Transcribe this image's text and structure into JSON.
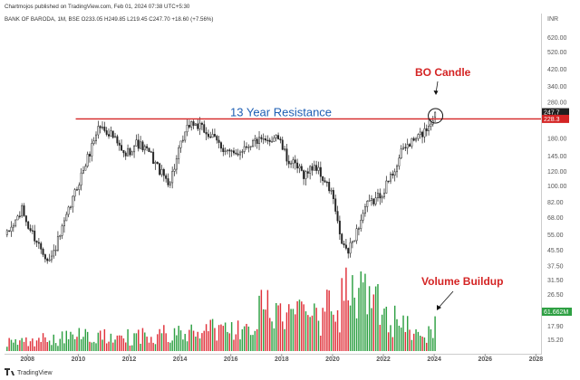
{
  "header": {
    "published_line": "Chartmojos published on TradingView.com, Feb 01, 2024 07:38 UTC+5:30",
    "symbol_line": "BANK OF BARODA, 1M, BSE  O233.05  H249.85  L219.45  C247.70  +18.60 (+7.56%)",
    "currency": "INR"
  },
  "footer": {
    "brand": "TradingView"
  },
  "colors": {
    "up": "#2ea043",
    "down": "#e0313a",
    "resistance": "#d42424",
    "annotation_blue": "#1e5fb4",
    "volume_badge": "#2ea043"
  },
  "chart_data": {
    "type": "candlestick",
    "title": "BANK OF BARODA, 1M, BSE",
    "xlabel": "",
    "ylabel": "",
    "y_scale": "log",
    "x_ticks": [
      "2008",
      "2010",
      "2012",
      "2014",
      "2016",
      "2018",
      "2020",
      "2022",
      "2024",
      "2026",
      "2028"
    ],
    "x_range": [
      2007.1,
      2028.2
    ],
    "y_ticks": [
      15.2,
      17.9,
      21.8,
      26.5,
      31.5,
      37.5,
      45.5,
      55.0,
      68.0,
      82.0,
      100.0,
      120.0,
      145.0,
      180.0,
      280.0,
      340.0,
      420.0,
      520.0,
      620.0
    ],
    "y_range": [
      13.2,
      720
    ],
    "resistance": {
      "label": "13 Year Resistance",
      "value": 228.3,
      "x_start": 2009.9
    },
    "last_price": 247.7,
    "ohlc": {
      "open": 233.05,
      "high": 249.85,
      "low": 219.45,
      "close": 247.7,
      "change": 18.6,
      "change_pct": 7.56
    },
    "annotations": [
      {
        "text": "BO Candle",
        "x": 2024.05,
        "y": 237.0
      },
      {
        "text": "Volume Buildup",
        "x": 2024.1
      }
    ],
    "last_volume_label": "61.662M",
    "price_keypoints": [
      [
        2007.2,
        55
      ],
      [
        2007.8,
        75
      ],
      [
        2008.0,
        62
      ],
      [
        2008.6,
        45
      ],
      [
        2008.9,
        40
      ],
      [
        2009.4,
        60
      ],
      [
        2009.9,
        95
      ],
      [
        2010.4,
        145
      ],
      [
        2010.8,
        210
      ],
      [
        2011.3,
        190
      ],
      [
        2011.8,
        145
      ],
      [
        2012.3,
        170
      ],
      [
        2012.8,
        150
      ],
      [
        2013.3,
        115
      ],
      [
        2013.6,
        105
      ],
      [
        2014.0,
        160
      ],
      [
        2014.4,
        220
      ],
      [
        2014.8,
        205
      ],
      [
        2015.3,
        180
      ],
      [
        2015.7,
        160
      ],
      [
        2016.1,
        145
      ],
      [
        2016.6,
        165
      ],
      [
        2017.0,
        175
      ],
      [
        2017.4,
        170
      ],
      [
        2017.8,
        190
      ],
      [
        2018.2,
        140
      ],
      [
        2018.6,
        125
      ],
      [
        2018.9,
        115
      ],
      [
        2019.3,
        130
      ],
      [
        2019.7,
        105
      ],
      [
        2020.0,
        90
      ],
      [
        2020.3,
        52
      ],
      [
        2020.6,
        44
      ],
      [
        2021.0,
        60
      ],
      [
        2021.3,
        78
      ],
      [
        2021.7,
        85
      ],
      [
        2022.0,
        95
      ],
      [
        2022.4,
        120
      ],
      [
        2022.8,
        160
      ],
      [
        2023.2,
        175
      ],
      [
        2023.6,
        195
      ],
      [
        2023.9,
        225
      ],
      [
        2024.05,
        247.7
      ]
    ],
    "volume_keypoints": [
      [
        2007.2,
        5
      ],
      [
        2008.5,
        6
      ],
      [
        2009.5,
        7
      ],
      [
        2010.8,
        8
      ],
      [
        2012.0,
        7
      ],
      [
        2013.5,
        9
      ],
      [
        2015.0,
        10
      ],
      [
        2016.5,
        12
      ],
      [
        2017.3,
        22
      ],
      [
        2018.0,
        15
      ],
      [
        2019.0,
        17
      ],
      [
        2019.8,
        20
      ],
      [
        2020.3,
        24
      ],
      [
        2020.9,
        32
      ],
      [
        2021.4,
        26
      ],
      [
        2022.0,
        20
      ],
      [
        2022.6,
        14
      ],
      [
        2023.3,
        10
      ],
      [
        2023.9,
        8
      ]
    ],
    "volume_max": 40
  }
}
